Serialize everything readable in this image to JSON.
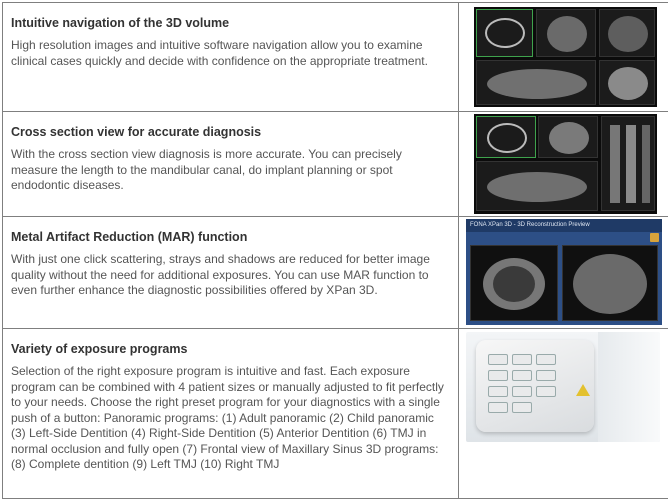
{
  "rows": [
    {
      "title": "Intuitive navigation of the 3D volume",
      "body": "High resolution images and intuitive software navigation allow you to examine clinical cases quickly and decide with confidence on the appropriate treatment."
    },
    {
      "title": "Cross section view for accurate diagnosis",
      "body": "With the cross section view diagnosis is more accurate. You can precisely measure the length to the mandibular canal, do implant planning or spot endodontic diseases."
    },
    {
      "title": "Metal Artifact Reduction (MAR) function",
      "body": "With just one click scattering, strays and shadows are reduced for better image quality without the need for additional exposures. You can use MAR function to even further enhance the diagnostic possibilities offered by XPan 3D.",
      "screenshot_title": "FONA XPan 3D - 3D Reconstruction Preview"
    },
    {
      "title": "Variety of exposure programs",
      "body": "Selection of the right exposure program is intuitive and fast. Each exposure program can be combined with 4 patient sizes or manually  adjusted to fit perfectly to your needs. Choose the right preset program for your diagnostics with a single push of a button: Panoramic programs: (1) Adult panoramic (2) Child panoramic (3) Left-Side Dentition (4) Right-Side Dentition (5) Anterior Dentition (6) TMJ in normal occlusion and fully open (7) Frontal view of Maxillary Sinus 3D programs: (8) Complete dentition (9) Left TMJ (10) Right TMJ"
    }
  ],
  "colors": {
    "border": "#7f7f7f",
    "title_text": "#333333",
    "body_text": "#555555",
    "ui_green": "#3fa34d",
    "panel_blue": "#2d4f86"
  },
  "icons": [
    "ct-volume-screenshot",
    "cross-section-screenshot",
    "mar-screenshot",
    "control-panel-photo"
  ]
}
